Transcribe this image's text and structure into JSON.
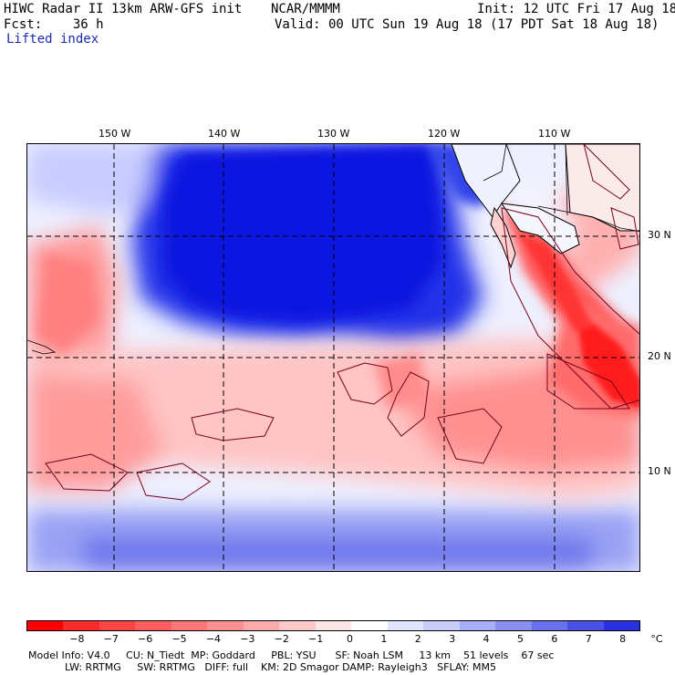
{
  "header": {
    "title": "HIWC Radar II 13km ARW-GFS init",
    "org": "NCAR/MMMM",
    "init": "Init: 12 UTC Fri 17 Aug 18",
    "fcst": "Fcst:    36 h",
    "valid": "Valid: 00 UTC Sun 19 Aug 18 (17 PDT Sat 18 Aug 18)",
    "field": "Lifted index"
  },
  "map": {
    "lon_labels": [
      "150 W",
      "140 W",
      "130 W",
      "120 W",
      "110 W"
    ],
    "lat_labels": [
      "30 N",
      "20 N",
      "10 N"
    ],
    "colors": {
      "positive_max": "#0000e6",
      "negative_max": "#ff0000",
      "neutral": "#ffffff",
      "contour": "#7a0018",
      "land_outline": "#000000"
    }
  },
  "colorbar": {
    "labels": [
      "−8",
      "−7",
      "−6",
      "−5",
      "−4",
      "−3",
      "−2",
      "−1",
      "0",
      "1",
      "2",
      "3",
      "4",
      "5",
      "6",
      "7",
      "8",
      "°C"
    ],
    "colors": [
      "#ff0000",
      "#ff2a2a",
      "#ff4444",
      "#ff5e5e",
      "#ff7777",
      "#ff9090",
      "#ffaaaa",
      "#ffc8c8",
      "#ffe6e6",
      "#ffffff",
      "#e0e4ff",
      "#c8ccff",
      "#a8aef8",
      "#8890f2",
      "#6870ec",
      "#4850e6",
      "#2830e0",
      "#0000e0"
    ]
  },
  "footer": {
    "line1": "Model Info: V4.0     CU: N_Tiedt  MP: Goddard     PBL: YSU      SF: Noah LSM     13 km    51 levels    67 sec",
    "line2": "LW: RRTMG     SW: RRTMG   DIFF: full    KM: 2D Smagor DAMP: Rayleigh3   SFLAY: MM5"
  }
}
